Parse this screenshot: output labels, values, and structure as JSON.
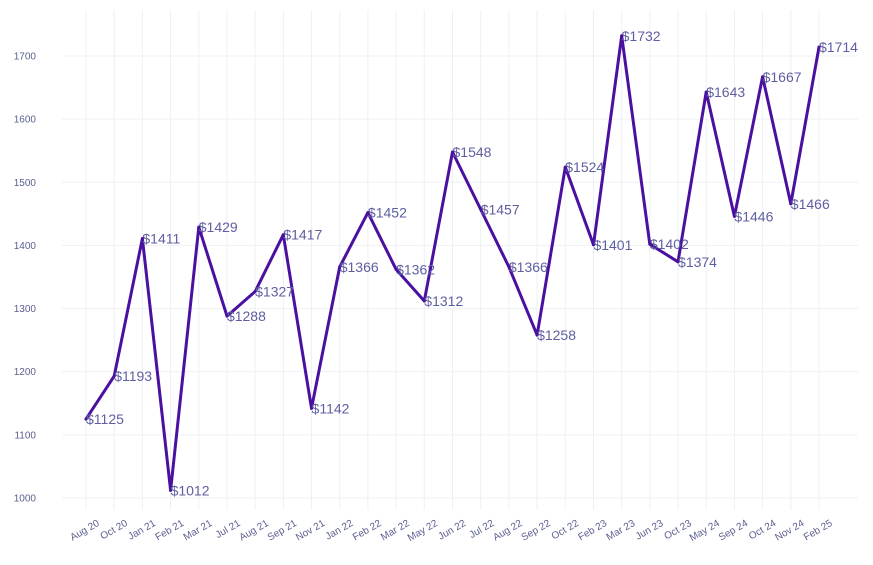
{
  "chart_data": {
    "type": "line",
    "title": "",
    "xlabel": "",
    "ylabel": "",
    "ylim": [
      980,
      1760
    ],
    "yticks": [
      1000,
      1100,
      1200,
      1300,
      1400,
      1500,
      1600,
      1700
    ],
    "grid": true,
    "legend": "none",
    "colors": {
      "line": "#4a10a0",
      "label": "#5e5fa0",
      "tick": "#5a5f8f",
      "grid": "#eef0f5"
    },
    "categories": [
      "Aug 20",
      "Oct 20",
      "Jan 21",
      "Feb 21",
      "Mar 21",
      "Jul 21",
      "Aug 21",
      "Sep 21",
      "Nov 21",
      "Jan 22",
      "Feb 22",
      "Mar 22",
      "May 22",
      "Jun 22",
      "Jul 22",
      "Aug 22",
      "Sep 22",
      "Oct 22",
      "Feb 23",
      "Mar 23",
      "Jun 23",
      "Oct 23",
      "May 24",
      "Sep 24",
      "Oct 24",
      "Nov 24",
      "Feb 25"
    ],
    "values": [
      1125,
      1193,
      1411,
      1012,
      1429,
      1288,
      1327,
      1417,
      1142,
      1366,
      1452,
      1362,
      1312,
      1548,
      1457,
      1366,
      1258,
      1524,
      1401,
      1732,
      1402,
      1374,
      1643,
      1446,
      1667,
      1466,
      1714
    ],
    "data_labels": [
      "$1125",
      "$1193",
      "$1411",
      "$1012",
      "$1429",
      "$1288",
      "$1327",
      "$1417",
      "$1142",
      "$1366",
      "$1452",
      "$1362",
      "$1312",
      "$1548",
      "$1457",
      "$1366",
      "$1258",
      "$1524",
      "$1401",
      "$1732",
      "$1402",
      "$1374",
      "$1643",
      "$1446",
      "$1667",
      "$1466",
      "$1714"
    ]
  }
}
